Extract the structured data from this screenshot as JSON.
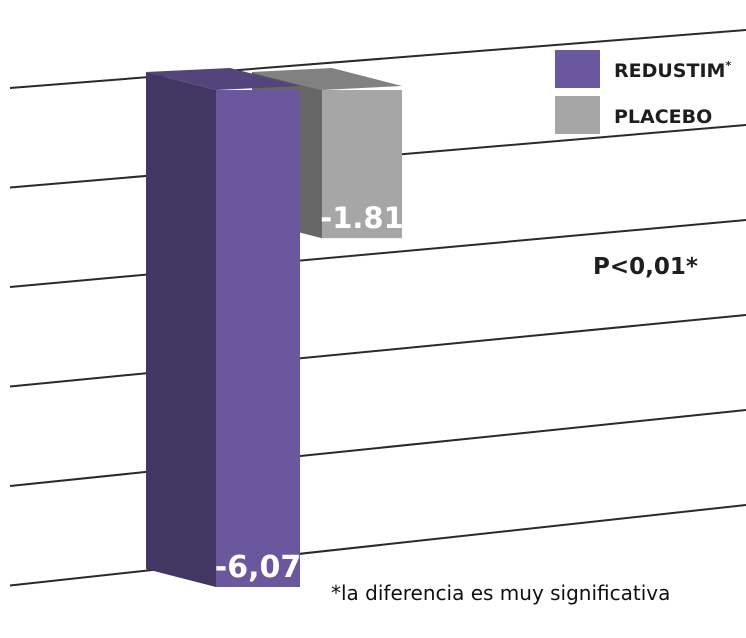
{
  "chart_data": {
    "type": "bar",
    "title": "",
    "xlabel": "",
    "ylabel": "",
    "categories": [
      "REDUSTIM",
      "PLACEBO"
    ],
    "series": [
      {
        "name": "REDUSTIM",
        "values": [
          -6.07,
          null
        ],
        "color": "#6b579e"
      },
      {
        "name": "PLACEBO",
        "values": [
          null,
          -1.81
        ],
        "color": "#a6a6a6"
      }
    ],
    "value_labels": [
      "-6,07",
      "-1.81"
    ],
    "ylim": [
      -6.4,
      0
    ],
    "grid": true,
    "style": "3d",
    "legend": {
      "placement": "top-right",
      "entries": [
        {
          "label": "REDUSTIM",
          "suffix": "*",
          "color": "#6b579e"
        },
        {
          "label": "PLACEBO",
          "suffix": "",
          "color": "#a6a6a6"
        }
      ]
    },
    "annotations": {
      "pvalue": "P<0,01*",
      "footnote": "*la diferencia es muy significativa"
    }
  }
}
